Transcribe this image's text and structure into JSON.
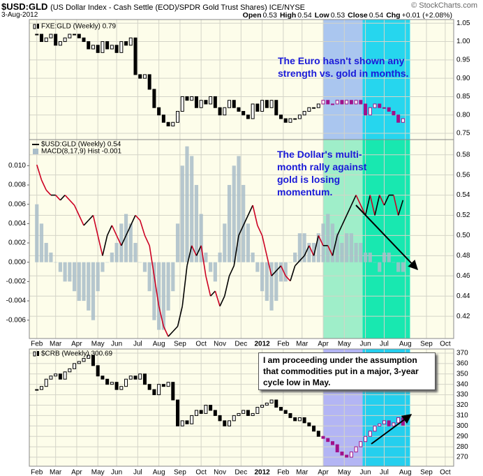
{
  "header": {
    "symbol": "$USD:GLD",
    "description": "(US Dollar Index - Cash Settle (EOD)/SPDR Gold Trust Shares) ICE/NYSE",
    "date": "3-Aug-2012",
    "quote": [
      {
        "label": "Open",
        "value": "0.53"
      },
      {
        "label": "High",
        "value": "0.54"
      },
      {
        "label": "Low",
        "value": "0.53"
      },
      {
        "label": "Close",
        "value": "0.54"
      },
      {
        "label": "Chg",
        "value": "+0.01 (+2.08%)"
      }
    ],
    "credit": "© StockCharts.com"
  },
  "chart_data": [
    {
      "type": "candlestick",
      "annotation": "The Euro hasn't shown any strength vs. gold in months.",
      "series": [
        {
          "name": "FXE:GLD (Weekly) 0.79",
          "color": "#000000",
          "zone_color": "#a0108a",
          "values": [
            1.02,
            1.0,
            1.01,
            1.02,
            0.99,
            1.0,
            1.01,
            1.02,
            1.02,
            1.01,
            1.0,
            0.98,
            0.99,
            0.97,
            1.0,
            0.98,
            0.99,
            0.97,
            1.0,
            0.99,
            1.01,
            0.91,
            0.9,
            0.91,
            0.87,
            0.82,
            0.8,
            0.78,
            0.77,
            0.78,
            0.81,
            0.85,
            0.84,
            0.85,
            0.82,
            0.84,
            0.83,
            0.85,
            0.82,
            0.8,
            0.82,
            0.84,
            0.82,
            0.81,
            0.8,
            0.79,
            0.83,
            0.81,
            0.84,
            0.82,
            0.84,
            0.8,
            0.79,
            0.78,
            0.79,
            0.79,
            0.8,
            0.81,
            0.82,
            0.82,
            0.83,
            0.84,
            0.83,
            0.83,
            0.84,
            0.83,
            0.84,
            0.83,
            0.84,
            0.83,
            0.8,
            0.82,
            0.83,
            0.82,
            0.82,
            0.81,
            0.8,
            0.78,
            0.79
          ]
        }
      ],
      "xlim": [
        -1.6,
        88.8
      ],
      "xticks": [
        0,
        4,
        8.5,
        13,
        17,
        21.5,
        26,
        30.5,
        35,
        39,
        43.5,
        48,
        52.5,
        56.5,
        61,
        65.5,
        70,
        74,
        78.5,
        83,
        87
      ],
      "ylim": [
        0.733,
        1.06
      ],
      "yticks": [
        1.05,
        {
          "value": 1.0,
          "label": "1.00"
        },
        0.95,
        {
          "value": 0.9,
          "label": "0.90"
        },
        0.85,
        {
          "value": 0.8,
          "label": "0.80"
        },
        0.75
      ],
      "highlights": [
        {
          "from": 61,
          "to": 69.4,
          "color": "#aac6ef"
        },
        {
          "from": 69.4,
          "to": 79.5,
          "color": "#26d6ee"
        }
      ]
    },
    {
      "type": "combo",
      "annotation": "The Dollar's multi-month rally against gold is losing momentum.",
      "series": [
        {
          "name": "$USD:GLD (Weekly) 0.54",
          "type": "line",
          "axis": "y2",
          "color": "#000000",
          "down_color": "#cc0022",
          "values": [
            0.57,
            0.555,
            0.545,
            0.54,
            0.54,
            0.535,
            0.54,
            0.535,
            0.53,
            0.52,
            0.51,
            0.515,
            0.52,
            0.5,
            0.48,
            0.5,
            0.51,
            0.5,
            0.49,
            0.5,
            0.51,
            0.52,
            0.515,
            0.5,
            0.49,
            0.46,
            0.43,
            0.41,
            0.4,
            0.405,
            0.41,
            0.43,
            0.47,
            0.49,
            0.48,
            0.49,
            0.46,
            0.44,
            0.445,
            0.43,
            0.44,
            0.46,
            0.47,
            0.5,
            0.51,
            0.52,
            0.53,
            0.51,
            0.5,
            0.48,
            0.46,
            0.465,
            0.47,
            0.46,
            0.455,
            0.47,
            0.475,
            0.48,
            0.49,
            0.48,
            0.5,
            0.49,
            0.49,
            0.48,
            0.5,
            0.51,
            0.52,
            0.53,
            0.54,
            0.53,
            0.52,
            0.54,
            0.52,
            0.54,
            0.53,
            0.54,
            0.54,
            0.52,
            0.535
          ]
        },
        {
          "name": "MACD(8,17,9) Hist -0.001",
          "type": "bar",
          "color": "#a9bdc9",
          "values": [
            0.006,
            0.004,
            0.002,
            0.001,
            0.0,
            -0.001,
            -0.002,
            -0.002,
            -0.003,
            -0.004,
            -0.004,
            -0.005,
            -0.006,
            -0.003,
            -0.001,
            0.0,
            0.001,
            0.002,
            0.004,
            0.005,
            0.004,
            0.002,
            0.0,
            -0.001,
            -0.003,
            -0.006,
            -0.007,
            -0.007,
            -0.005,
            -0.003,
            0.004,
            0.01,
            0.012,
            0.011,
            0.008,
            0.005,
            0.001,
            -0.001,
            -0.002,
            0.001,
            0.004,
            0.008,
            0.01,
            0.011,
            0.008,
            0.004,
            0.001,
            -0.001,
            -0.003,
            -0.004,
            -0.005,
            -0.004,
            -0.002,
            -0.002,
            0.0,
            0.001,
            0.003,
            0.003,
            0.002,
            0.002,
            0.003,
            0.004,
            0.005,
            0.004,
            0.003,
            0.002,
            0.003,
            0.003,
            0.002,
            0.002,
            0.001,
            0.001,
            0.0,
            -0.001,
            0.001,
            0.001,
            0.0,
            -0.001,
            -0.001
          ]
        }
      ],
      "xlim": [
        -1.6,
        88.8
      ],
      "xticks": [
        {
          "value": 0,
          "label": "Feb"
        },
        {
          "value": 4,
          "label": "Mar"
        },
        {
          "value": 8.5,
          "label": "Apr"
        },
        {
          "value": 13,
          "label": "May"
        },
        {
          "value": 17,
          "label": "Jun"
        },
        {
          "value": 21.5,
          "label": "Jul"
        },
        {
          "value": 26,
          "label": "Aug"
        },
        {
          "value": 30.5,
          "label": "Sep"
        },
        {
          "value": 35,
          "label": "Oct"
        },
        {
          "value": 39,
          "label": "Nov"
        },
        {
          "value": 43.5,
          "label": "Dec"
        },
        {
          "value": 48,
          "label": "2012"
        },
        {
          "value": 52.5,
          "label": "Feb"
        },
        {
          "value": 56.5,
          "label": "Mar"
        },
        {
          "value": 61,
          "label": "Apr"
        },
        {
          "value": 65.5,
          "label": "May"
        },
        {
          "value": 70,
          "label": "Jun"
        },
        {
          "value": 74,
          "label": "Jul"
        },
        {
          "value": 78.5,
          "label": "Aug"
        },
        {
          "value": 83,
          "label": "Sep"
        },
        {
          "value": 87,
          "label": "Oct"
        }
      ],
      "ylim": [
        -0.0079,
        0.0127
      ],
      "yticks": [
        {
          "value": 0.01,
          "label": "0.010"
        },
        0.008,
        0.006,
        0.004,
        0.002,
        {
          "value": 0,
          "label": "0.000"
        },
        -0.002,
        -0.004,
        -0.006
      ],
      "y2lim": [
        0.398,
        0.595
      ],
      "y2ticks": [
        0.58,
        0.56,
        0.54,
        0.52,
        {
          "value": 0.5,
          "label": "0.50"
        },
        0.48,
        0.46,
        0.44,
        0.42
      ],
      "highlights": [
        {
          "from": 61,
          "to": 69.4,
          "color": "#9feec9"
        },
        {
          "from": 69.4,
          "to": 79.5,
          "color": "#18e8b0"
        }
      ]
    },
    {
      "type": "candlestick",
      "annotation": "I am proceeding under the assumption that commodities put in a major, 3-year cycle low in May.",
      "series": [
        {
          "name": "$CRB (Weekly) 300.69",
          "color": "#000000",
          "zone_color": "#a0108a",
          "values": [
            335,
            338,
            345,
            348,
            350,
            345,
            352,
            355,
            360,
            362,
            365,
            368,
            358,
            348,
            345,
            340,
            342,
            335,
            338,
            345,
            348,
            345,
            350,
            340,
            335,
            330,
            340,
            338,
            342,
            325,
            300,
            305,
            302,
            310,
            315,
            312,
            320,
            315,
            310,
            305,
            300,
            305,
            310,
            312,
            315,
            310,
            312,
            318,
            320,
            322,
            325,
            318,
            315,
            312,
            308,
            305,
            308,
            303,
            300,
            295,
            290,
            288,
            285,
            282,
            275,
            272,
            270,
            275,
            280,
            285,
            290,
            295,
            300,
            302,
            305,
            300,
            303,
            308,
            300.69
          ]
        }
      ],
      "xlim": [
        -1.6,
        88.8
      ],
      "xticks": [
        {
          "value": 0,
          "label": "Feb"
        },
        {
          "value": 4,
          "label": "Mar"
        },
        {
          "value": 8.5,
          "label": "Apr"
        },
        {
          "value": 13,
          "label": "May"
        },
        {
          "value": 17,
          "label": "Jun"
        },
        {
          "value": 21.5,
          "label": "Jul"
        },
        {
          "value": 26,
          "label": "Aug"
        },
        {
          "value": 30.5,
          "label": "Sep"
        },
        {
          "value": 35,
          "label": "Oct"
        },
        {
          "value": 39,
          "label": "Nov"
        },
        {
          "value": 43.5,
          "label": "Dec"
        },
        {
          "value": 48,
          "label": "2012"
        },
        {
          "value": 52.5,
          "label": "Feb"
        },
        {
          "value": 56.5,
          "label": "Mar"
        },
        {
          "value": 61,
          "label": "Apr"
        },
        {
          "value": 65.5,
          "label": "May"
        },
        {
          "value": 70,
          "label": "Jun"
        },
        {
          "value": 74,
          "label": "Jul"
        },
        {
          "value": 78.5,
          "label": "Aug"
        },
        {
          "value": 83,
          "label": "Sep"
        },
        {
          "value": 87,
          "label": "Oct"
        }
      ],
      "ylim": [
        261.3,
        374
      ],
      "yticks": [
        370,
        360,
        350,
        340,
        330,
        320,
        310,
        300,
        290,
        280,
        270
      ],
      "highlights": [
        {
          "from": 61,
          "to": 69.4,
          "color": "#b3b5f4"
        },
        {
          "from": 69.4,
          "to": 79.5,
          "color": "#24cfee"
        }
      ]
    }
  ]
}
